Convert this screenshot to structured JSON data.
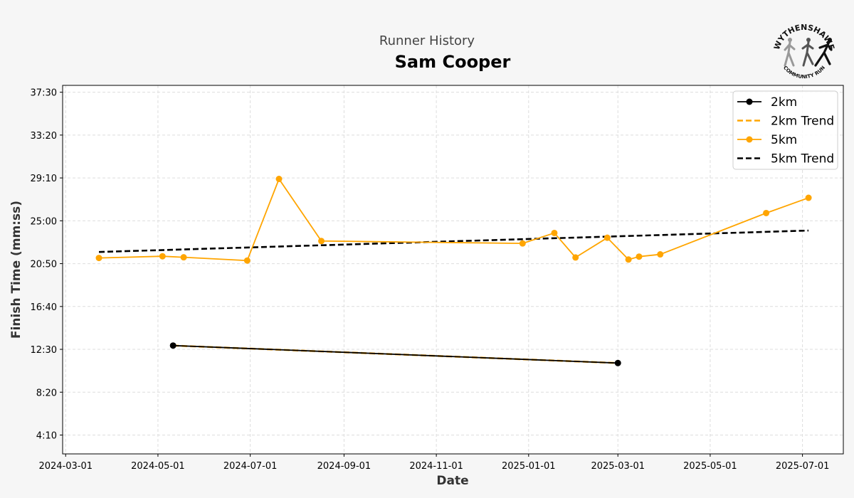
{
  "header": {
    "supertitle": "Runner History",
    "title": "Sam Cooper"
  },
  "logo": {
    "text_top": "WYTHENSHAWE",
    "text_bottom": "COMMUNITY RUN",
    "icon": "runners-logo-icon"
  },
  "colors": {
    "orange": "#ffa500",
    "black": "#000000",
    "grid": "#dddddd",
    "background": "#f6f6f6"
  },
  "chart_data": {
    "type": "line",
    "title": "Sam Cooper",
    "xlabel": "Date",
    "ylabel": "Finish Time (mm:ss)",
    "y_unit": "seconds",
    "ylim": [
      140,
      2290
    ],
    "xlim": [
      "2024-02-28",
      "2025-07-28"
    ],
    "x_ticks": [
      "2024-03-01",
      "2024-05-01",
      "2024-07-01",
      "2024-09-01",
      "2024-11-01",
      "2025-01-01",
      "2025-03-01",
      "2025-05-01",
      "2025-07-01"
    ],
    "y_ticks": [
      {
        "value": 250,
        "label": "4:10"
      },
      {
        "value": 500,
        "label": "8:20"
      },
      {
        "value": 750,
        "label": "12:30"
      },
      {
        "value": 1000,
        "label": "16:40"
      },
      {
        "value": 1250,
        "label": "20:50"
      },
      {
        "value": 1500,
        "label": "25:00"
      },
      {
        "value": 1750,
        "label": "29:10"
      },
      {
        "value": 2000,
        "label": "33:20"
      },
      {
        "value": 2250,
        "label": "37:30"
      }
    ],
    "grid": true,
    "legend_position": "top-right",
    "series": [
      {
        "name": "2km",
        "color": "#000000",
        "style": "solid",
        "marker": "circle",
        "points": [
          {
            "x": "2024-05-11",
            "y": 772
          },
          {
            "x": "2025-03-01",
            "y": 670
          }
        ]
      },
      {
        "name": "2km Trend",
        "color": "#ffa500",
        "style": "dashed",
        "marker": "none",
        "points": [
          {
            "x": "2024-05-11",
            "y": 772
          },
          {
            "x": "2025-03-01",
            "y": 670
          }
        ]
      },
      {
        "name": "5km",
        "color": "#ffa500",
        "style": "solid",
        "marker": "circle",
        "points": [
          {
            "x": "2024-03-23",
            "y": 1283
          },
          {
            "x": "2024-05-04",
            "y": 1293
          },
          {
            "x": "2024-05-18",
            "y": 1287
          },
          {
            "x": "2024-06-29",
            "y": 1268
          },
          {
            "x": "2024-07-20",
            "y": 1744
          },
          {
            "x": "2024-08-17",
            "y": 1382
          },
          {
            "x": "2024-12-28",
            "y": 1368
          },
          {
            "x": "2025-01-18",
            "y": 1429
          },
          {
            "x": "2025-02-01",
            "y": 1286
          },
          {
            "x": "2025-02-22",
            "y": 1401
          },
          {
            "x": "2025-03-08",
            "y": 1274
          },
          {
            "x": "2025-03-15",
            "y": 1291
          },
          {
            "x": "2025-03-29",
            "y": 1304
          },
          {
            "x": "2025-06-07",
            "y": 1545
          },
          {
            "x": "2025-07-05",
            "y": 1634
          }
        ]
      },
      {
        "name": "5km Trend",
        "color": "#000000",
        "style": "dashed",
        "marker": "none",
        "points": [
          {
            "x": "2024-03-23",
            "y": 1318
          },
          {
            "x": "2025-07-05",
            "y": 1443
          }
        ]
      }
    ]
  }
}
